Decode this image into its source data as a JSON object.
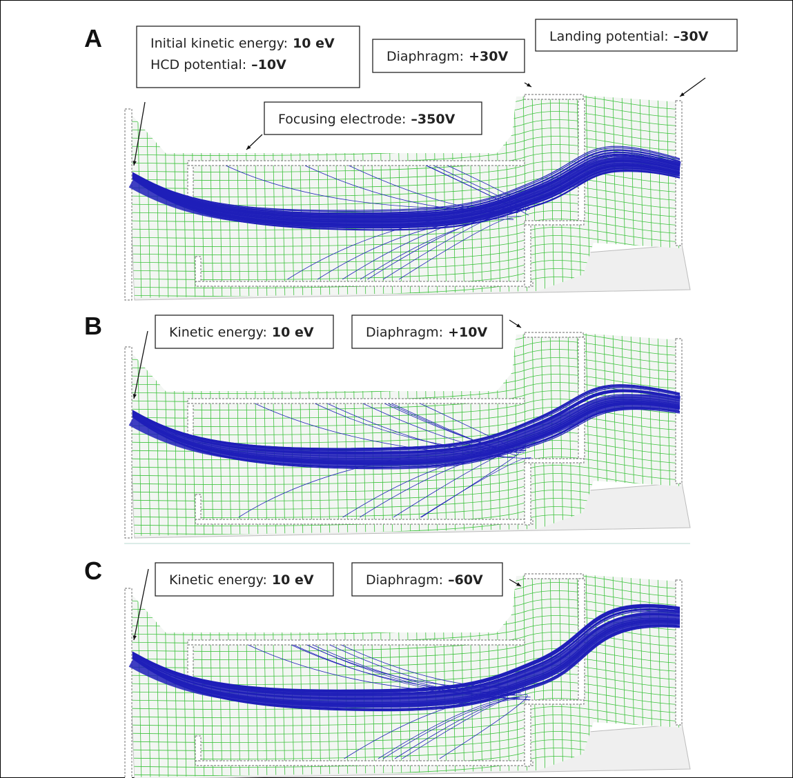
{
  "panels": [
    {
      "letter": "A",
      "annotations": [
        {
          "lines": [
            {
              "label": "Initial kinetic energy:",
              "value": "10 eV"
            },
            {
              "label": "HCD potential:",
              "value": "–10V"
            }
          ]
        },
        {
          "lines": [
            {
              "label": "Diaphragm:",
              "value": "+30V"
            }
          ]
        },
        {
          "lines": [
            {
              "label": "Landing potential:",
              "value": "–30V"
            }
          ]
        },
        {
          "lines": [
            {
              "label": "Focusing electrode:",
              "value": "–350V"
            }
          ]
        }
      ]
    },
    {
      "letter": "B",
      "annotations": [
        {
          "lines": [
            {
              "label": "Kinetic energy:",
              "value": "10 eV"
            }
          ]
        },
        {
          "lines": [
            {
              "label": "Diaphragm:",
              "value": "+10V"
            }
          ]
        }
      ]
    },
    {
      "letter": "C",
      "annotations": [
        {
          "lines": [
            {
              "label": "Kinetic energy:",
              "value": "10 eV"
            }
          ]
        },
        {
          "lines": [
            {
              "label": "Diaphragm:",
              "value": "–60V"
            }
          ]
        }
      ]
    }
  ]
}
